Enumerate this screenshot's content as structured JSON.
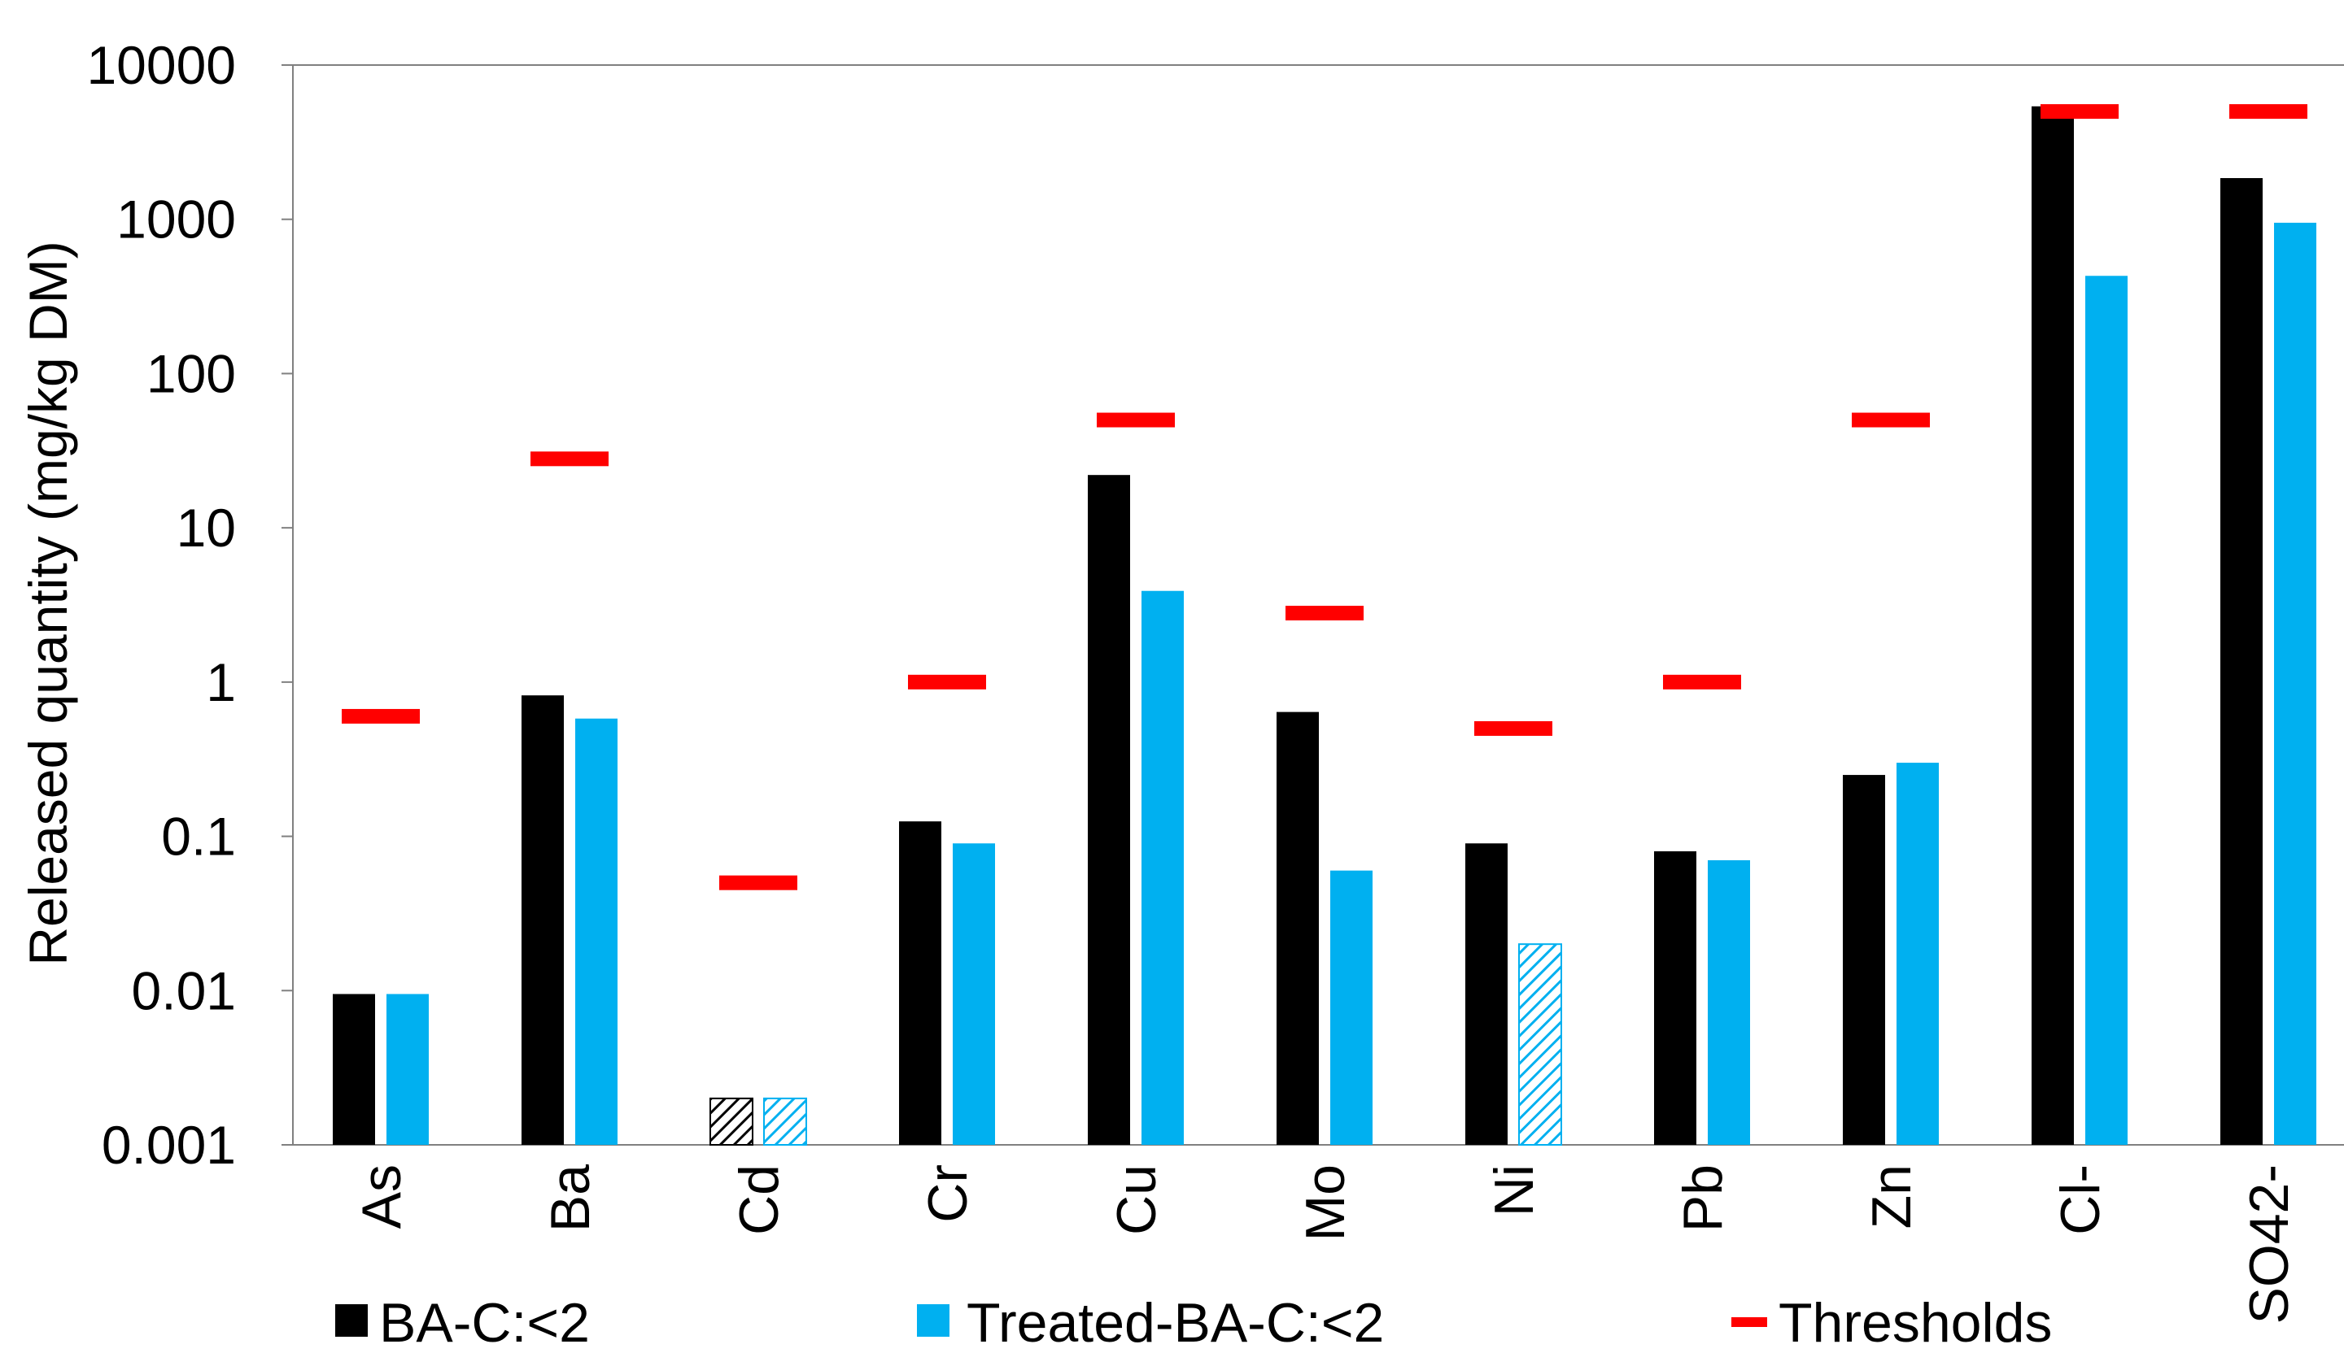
{
  "chart_data": {
    "type": "bar",
    "scale": "log",
    "ylabel": "Released quantity (mg/kg DM)",
    "xlabel": "",
    "ylim": [
      0.001,
      10000
    ],
    "yticks": [
      "10000",
      "1000",
      "100",
      "10",
      "1",
      "0.1",
      "0.01",
      "0.001"
    ],
    "categories": [
      "As",
      "Ba",
      "Cd",
      "Cr",
      "Cu",
      "Mo",
      "Ni",
      "Pb",
      "Zn",
      "Cl-",
      "SO42-"
    ],
    "series": [
      {
        "name": "BA-C:<2",
        "color": "#000000",
        "values": [
          0.0095,
          0.82,
          0.002,
          0.125,
          22,
          0.64,
          0.09,
          0.08,
          0.25,
          5400,
          1850
        ],
        "hatched": [
          false,
          false,
          true,
          false,
          false,
          false,
          false,
          false,
          false,
          false,
          false
        ]
      },
      {
        "name": "Treated-BA-C:<2",
        "color": "#00b0f0",
        "values": [
          0.0095,
          0.58,
          0.002,
          0.09,
          3.9,
          0.06,
          0.02,
          0.07,
          0.3,
          430,
          950
        ],
        "hatched": [
          false,
          false,
          true,
          false,
          false,
          false,
          true,
          false,
          false,
          false,
          false
        ]
      }
    ],
    "thresholds": {
      "name": "Thresholds",
      "color": "#ff0000",
      "values": [
        0.6,
        28,
        0.05,
        1,
        50,
        2.8,
        0.5,
        1,
        50,
        5000,
        5000
      ]
    },
    "grid": false,
    "legend_position": "bottom"
  }
}
